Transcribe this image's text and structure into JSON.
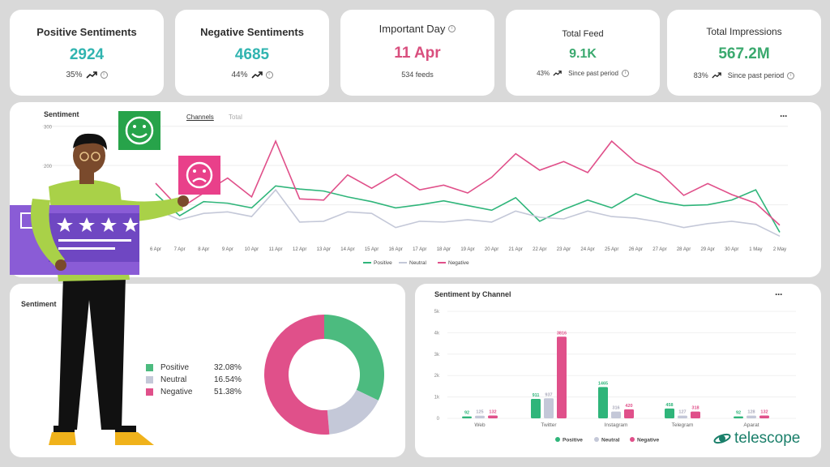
{
  "kpis": {
    "positive": {
      "title": "Positive Sentiments",
      "value": "2924",
      "change": "35%"
    },
    "negative": {
      "title": "Negative Sentiments",
      "value": "4685",
      "change": "44%"
    },
    "important": {
      "title": "Important Day",
      "value": "11 Apr",
      "sub": "534 feeds"
    },
    "feed": {
      "title": "Total Feed",
      "value": "9.1K",
      "change": "43%",
      "since": "Since past period"
    },
    "impressions": {
      "title": "Total Impressions",
      "value": "567.2M",
      "change": "83%",
      "since": "Since past period"
    }
  },
  "colors": {
    "positive": "#2fb57a",
    "neutral": "#c4c8d8",
    "negative": "#e0508a",
    "kpi_teal": "#30b4b0",
    "kpi_pink": "#d94f7e",
    "kpi_green": "#3aa96e"
  },
  "sentiment_chart": {
    "title": "Sentiment",
    "tabs": [
      "Channels",
      "Total"
    ],
    "more": "···",
    "legend": [
      "Positive",
      "Neutral",
      "Negative"
    ]
  },
  "pie_section": {
    "title": "Sentiment",
    "legend": [
      {
        "label": "Positive",
        "pct": "32.08%"
      },
      {
        "label": "Neutral",
        "pct": "16.54%"
      },
      {
        "label": "Negative",
        "pct": "51.38%"
      }
    ]
  },
  "channel_section": {
    "title": "Sentiment by Channel",
    "more": "···"
  },
  "brand": {
    "name": "telescope"
  },
  "chart_data": [
    {
      "type": "line",
      "title": "Sentiment",
      "x": [
        "6 Apr",
        "7 Apr",
        "8 Apr",
        "9 Apr",
        "10 Apr",
        "11 Apr",
        "12 Apr",
        "13 Apr",
        "14 Apr",
        "15 Apr",
        "16 Apr",
        "17 Apr",
        "18 Apr",
        "19 Apr",
        "20 Apr",
        "21 Apr",
        "22 Apr",
        "23 Apr",
        "24 Apr",
        "25 Apr",
        "26 Apr",
        "27 Apr",
        "28 Apr",
        "29 Apr",
        "30 Apr",
        "1 May",
        "2 May"
      ],
      "yticks": [
        "200",
        "300"
      ],
      "ylim": [
        0,
        320
      ],
      "series": [
        {
          "name": "Positive",
          "values": [
            128,
            72,
            108,
            104,
            92,
            148,
            140,
            135,
            120,
            108,
            92,
            100,
            110,
            98,
            86,
            118,
            58,
            88,
            112,
            92,
            128,
            108,
            98,
            100,
            112,
            138,
            30
          ]
        },
        {
          "name": "Neutral",
          "values": [
            88,
            62,
            78,
            82,
            70,
            138,
            56,
            58,
            82,
            78,
            42,
            58,
            56,
            62,
            56,
            84,
            68,
            64,
            84,
            70,
            66,
            56,
            42,
            52,
            58,
            50,
            20
          ]
        },
        {
          "name": "Negative",
          "values": [
            155,
            90,
            130,
            168,
            120,
            262,
            115,
            112,
            176,
            142,
            178,
            138,
            150,
            130,
            170,
            230,
            188,
            210,
            182,
            262,
            208,
            182,
            124,
            154,
            126,
            104,
            48
          ]
        }
      ],
      "grid": true,
      "legend_position": "bottom"
    },
    {
      "type": "pie",
      "title": "Sentiment",
      "labels": [
        "Positive",
        "Neutral",
        "Negative"
      ],
      "values": [
        32.08,
        16.54,
        51.38
      ]
    },
    {
      "type": "bar",
      "title": "Sentiment by Channel",
      "categories": [
        "Web",
        "Twitter",
        "Instagram",
        "Telegram",
        "Aparat"
      ],
      "yticks": [
        "0",
        "1k",
        "2k",
        "3k",
        "4k",
        "5k"
      ],
      "ylim": [
        0,
        5000
      ],
      "series": [
        {
          "name": "Positive",
          "values": [
            92,
            911,
            1465,
            458,
            92
          ]
        },
        {
          "name": "Neutral",
          "values": [
            125,
            937,
            316,
            127,
            128
          ]
        },
        {
          "name": "Negative",
          "values": [
            132,
            3816,
            420,
            318,
            132
          ]
        }
      ],
      "legend_position": "bottom"
    }
  ]
}
